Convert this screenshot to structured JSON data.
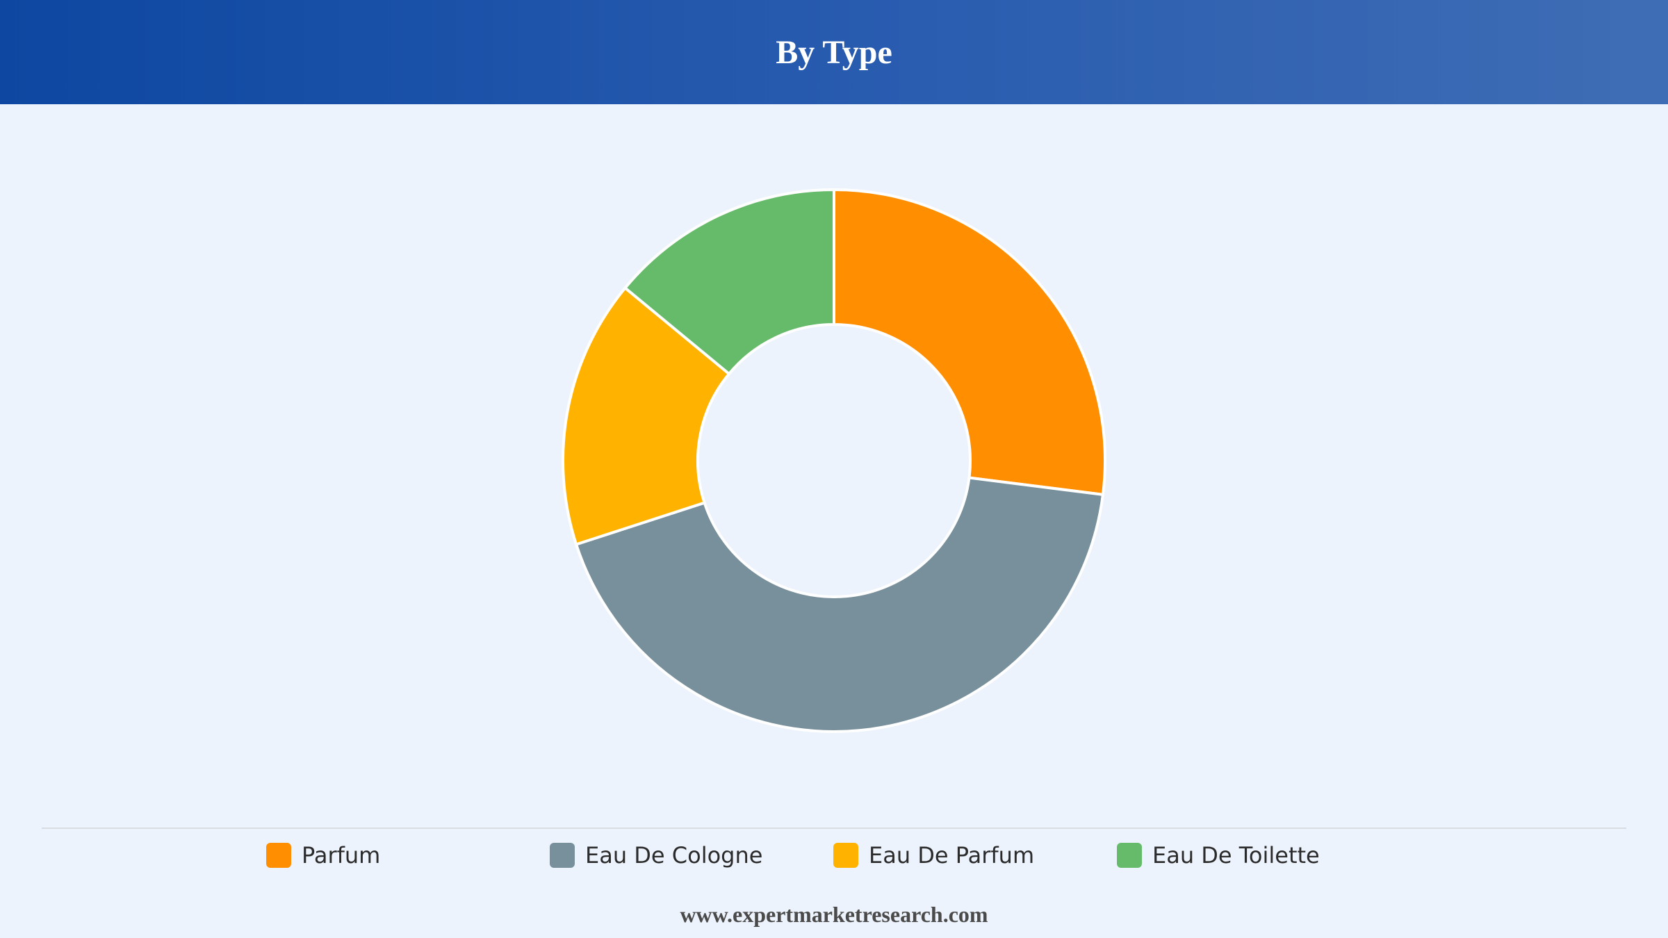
{
  "header": {
    "title": "By Type"
  },
  "chart_data": {
    "type": "pie",
    "variant": "donut",
    "title": "By Type",
    "legend_position": "bottom",
    "categories": [
      "Parfum",
      "Eau De Cologne",
      "Eau De Parfum",
      "Eau De Toilette"
    ],
    "values": [
      27,
      43,
      16,
      14
    ],
    "colors": [
      "#ff8f00",
      "#78909c",
      "#ffb300",
      "#66bb6a"
    ]
  },
  "footer": {
    "source": "www.expertmarketresearch.com"
  }
}
